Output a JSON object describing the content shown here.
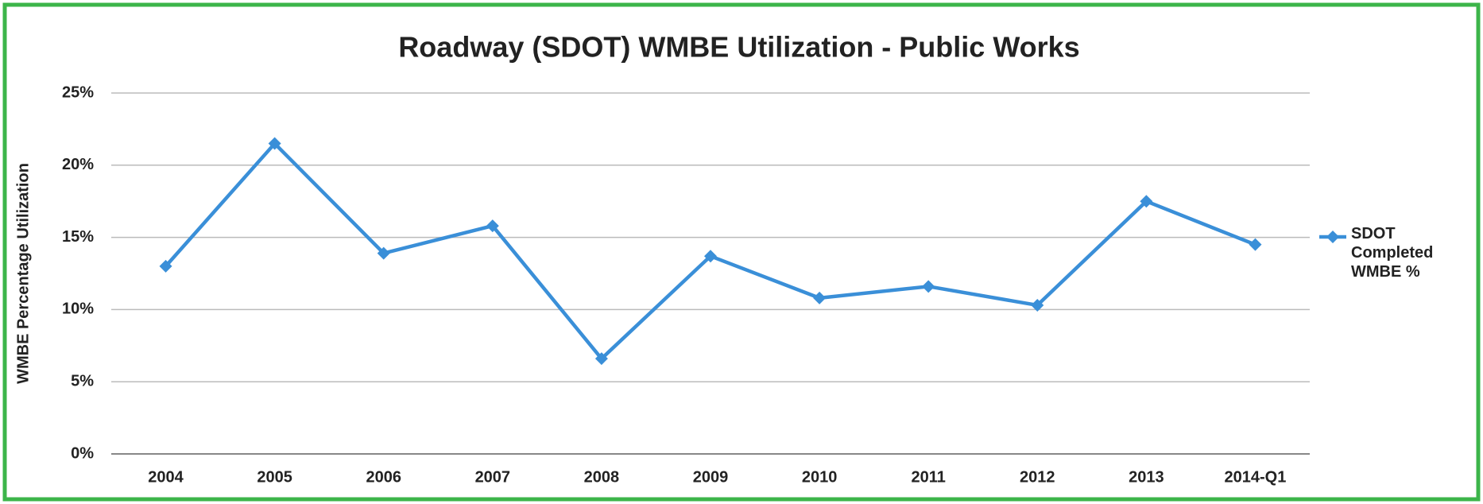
{
  "chart_data": {
    "type": "line",
    "title": "Roadway (SDOT) WMBE Utilization - Public Works",
    "y_label": "WMBE Percentage Utilization",
    "categories": [
      "2004",
      "2005",
      "2006",
      "2007",
      "2008",
      "2009",
      "2010",
      "2011",
      "2012",
      "2013",
      "2014-Q1"
    ],
    "series": [
      {
        "name": "SDOT Completed WMBE %",
        "color": "#3a8fd8",
        "values": [
          13,
          21.5,
          13.9,
          15.8,
          6.6,
          13.7,
          10.8,
          11.6,
          10.3,
          17.5,
          14.5
        ]
      }
    ],
    "ylim": [
      0,
      25
    ],
    "yticks": [
      {
        "value": 0,
        "label": "0%"
      },
      {
        "value": 5,
        "label": "5%"
      },
      {
        "value": 10,
        "label": "10%"
      },
      {
        "value": 15,
        "label": "15%"
      },
      {
        "value": 20,
        "label": "20%"
      },
      {
        "value": 25,
        "label": "25%"
      }
    ],
    "grid": true,
    "legend": "right"
  }
}
